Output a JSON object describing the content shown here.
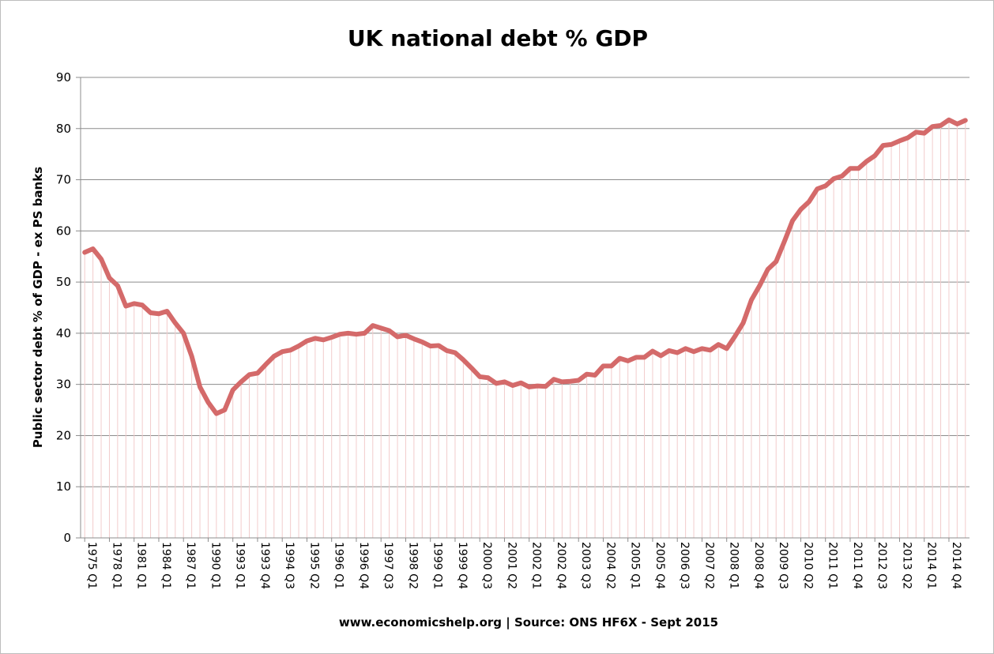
{
  "chart_data": {
    "type": "line",
    "title": "UK national debt % GDP",
    "xlabel": "",
    "ylabel": "Public sector debt % of GDP - ex PS banks",
    "source_note": "www.economicshelp.org | Source: ONS HF6X - Sept 2015",
    "ylim": [
      0,
      90
    ],
    "yticks": [
      "0",
      "10",
      "20",
      "30",
      "40",
      "50",
      "60",
      "70",
      "80",
      "90"
    ],
    "grid": true,
    "legend": "none",
    "line_color": "#d46a6a",
    "drop_line_color": "#f2cccc",
    "x_tick_labels": [
      "1975 Q1",
      "1978 Q1",
      "1981 Q1",
      "1984 Q1",
      "1987 Q1",
      "1990 Q1",
      "1993 Q1",
      "1993 Q4",
      "1994 Q3",
      "1995 Q2",
      "1996 Q1",
      "1996 Q4",
      "1997 Q3",
      "1998 Q2",
      "1999 Q1",
      "1999 Q4",
      "2000 Q3",
      "2001 Q2",
      "2002 Q1",
      "2002 Q4",
      "2003 Q3",
      "2004 Q2",
      "2005 Q1",
      "2005 Q4",
      "2006 Q3",
      "2007 Q2",
      "2008 Q1",
      "2008 Q4",
      "2009 Q3",
      "2010 Q2",
      "2011 Q1",
      "2011 Q4",
      "2012 Q3",
      "2013 Q2",
      "2014 Q1",
      "2014 Q4"
    ],
    "series": [
      {
        "values": [
          55.8,
          56.5,
          54.5,
          50.8,
          49.3,
          45.3,
          45.8,
          45.5,
          44.0,
          43.8,
          44.3,
          42.0,
          40.0,
          35.5,
          29.5,
          26.5,
          24.3,
          25.0,
          28.9,
          30.5,
          31.9,
          32.2,
          33.9,
          35.5,
          36.4,
          36.7,
          37.5,
          38.5,
          39.0,
          38.7,
          39.2,
          39.8,
          40.0,
          39.8,
          40.0,
          41.5,
          41.0,
          40.5,
          39.3,
          39.6,
          38.9,
          38.3,
          37.5,
          37.6,
          36.6,
          36.2,
          34.8,
          33.2,
          31.5,
          31.3,
          30.2,
          30.5,
          29.8,
          30.3,
          29.5,
          29.7,
          29.6,
          31.0,
          30.5,
          30.6,
          30.8,
          32.0,
          31.8,
          33.6,
          33.6,
          35.1,
          34.6,
          35.3,
          35.3,
          36.5,
          35.6,
          36.6,
          36.2,
          37.0,
          36.4,
          37.0,
          36.7,
          37.8,
          37.0,
          39.4,
          42.0,
          46.5,
          49.3,
          52.5,
          54.0,
          57.9,
          62.0,
          64.2,
          65.7,
          68.2,
          68.8,
          70.2,
          70.7,
          72.2,
          72.2,
          73.6,
          74.7,
          76.7,
          76.9,
          77.6,
          78.2,
          79.3,
          79.1,
          80.4,
          80.6,
          81.7,
          80.9,
          81.6
        ]
      }
    ]
  }
}
